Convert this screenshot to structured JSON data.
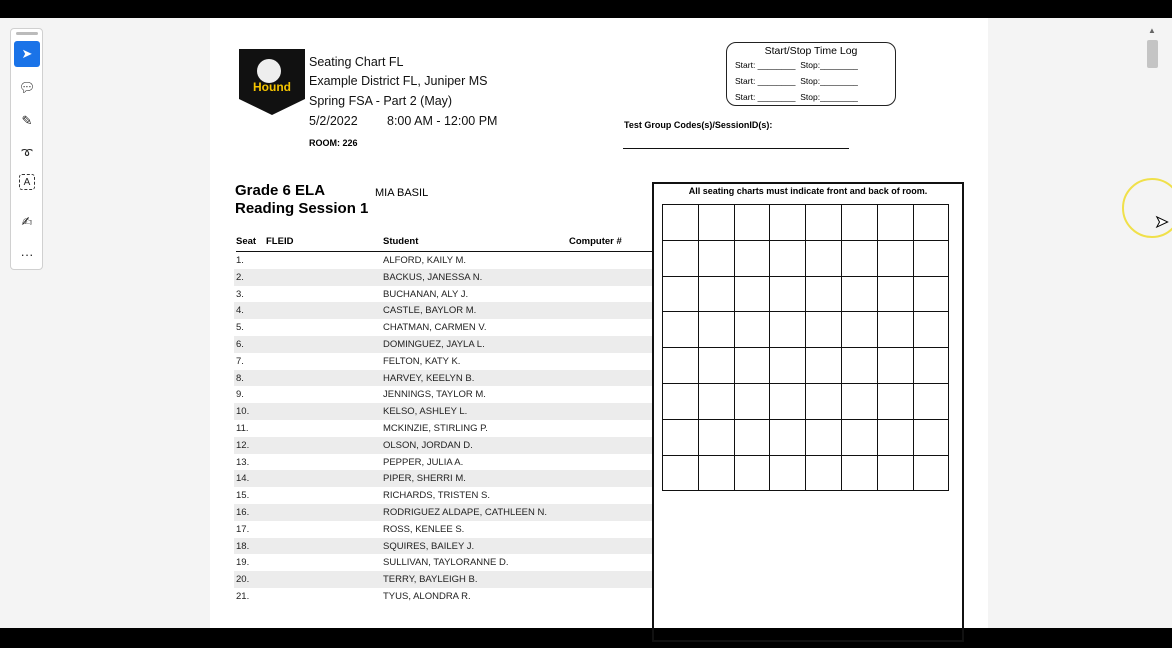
{
  "header": {
    "title": "Seating Chart FL",
    "district": "Example District FL, Juniper MS",
    "test": "Spring FSA - Part 2 (May)",
    "date": "5/2/2022",
    "time": "8:00 AM - 12:00 PM",
    "room": "ROOM: 226",
    "logo_text": "Test Hound"
  },
  "time_log": {
    "title": "Start/Stop Time Log",
    "rows": [
      {
        "start": "Start: ________",
        "stop": "Stop:________"
      },
      {
        "start": "Start: ________",
        "stop": "Stop:________"
      },
      {
        "start": "Start: ________",
        "stop": "Stop:________"
      }
    ]
  },
  "session_codes_label": "Test Group Codes(s)/SessionID(s):",
  "course": {
    "title": "Grade 6 ELA",
    "session": "Reading Session 1",
    "teacher": "MIA BASIL"
  },
  "table": {
    "columns": [
      "Seat",
      "FLEID",
      "Student",
      "Computer #"
    ],
    "rows": [
      [
        "1.",
        "ALFORD, KAILY M."
      ],
      [
        "2.",
        "BACKUS, JANESSA N."
      ],
      [
        "3.",
        "BUCHANAN, ALY J."
      ],
      [
        "4.",
        "CASTLE, BAYLOR M."
      ],
      [
        "5.",
        "CHATMAN, CARMEN V."
      ],
      [
        "6.",
        "DOMINGUEZ, JAYLA L."
      ],
      [
        "7.",
        "FELTON, KATY K."
      ],
      [
        "8.",
        "HARVEY, KEELYN B."
      ],
      [
        "9.",
        "JENNINGS, TAYLOR M."
      ],
      [
        "10.",
        "KELSO, ASHLEY L."
      ],
      [
        "11.",
        "MCKINZIE, STIRLING P."
      ],
      [
        "12.",
        "OLSON, JORDAN D."
      ],
      [
        "13.",
        "PEPPER, JULIA A."
      ],
      [
        "14.",
        "PIPER, SHERRI M."
      ],
      [
        "15.",
        "RICHARDS, TRISTEN S."
      ],
      [
        "16.",
        "RODRIGUEZ ALDAPE, CATHLEEN N."
      ],
      [
        "17.",
        "ROSS, KENLEE S."
      ],
      [
        "18.",
        "SQUIRES, BAILEY J."
      ],
      [
        "19.",
        "SULLIVAN, TAYLORANNE D."
      ],
      [
        "20.",
        "TERRY, BAYLEIGH B."
      ],
      [
        "21.",
        "TYUS, ALONDRA R."
      ]
    ]
  },
  "seating_note": "All seating charts must indicate front and back of room.",
  "toolbar": {
    "more": "···"
  },
  "accent": "#1a73e8"
}
